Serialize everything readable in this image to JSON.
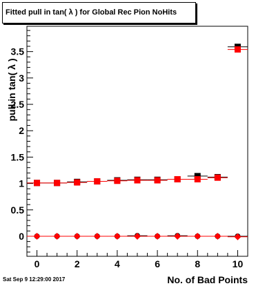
{
  "title": "Fitted pull in tan( λ ) for Global Rec Pion NoHits",
  "timestamp": "Sat Sep  9 12:29:00 2017",
  "chart_data": {
    "type": "scatter",
    "xlabel": "No. of Bad Points",
    "ylabel": "pull in tan( λ )",
    "xlim": [
      -0.5,
      10.5
    ],
    "ylim": [
      -0.38,
      3.98
    ],
    "xticks": [
      0,
      2,
      4,
      6,
      8,
      10
    ],
    "yticks": [
      0,
      0.5,
      1,
      1.5,
      2,
      2.5,
      3,
      3.5
    ],
    "ytick_labels": [
      "0",
      "0.5",
      "1",
      "1.5",
      "2",
      "2.5",
      "3",
      "3.5"
    ],
    "grid": false,
    "legend": "none",
    "series": [
      {
        "marker": "square",
        "color": "#000000",
        "points": [
          {
            "x": 0,
            "y": 1.01
          },
          {
            "x": 1,
            "y": 1.01
          },
          {
            "x": 2,
            "y": 1.03
          },
          {
            "x": 3,
            "y": 1.04
          },
          {
            "x": 4,
            "y": 1.06
          },
          {
            "x": 5,
            "y": 1.07
          },
          {
            "x": 6,
            "y": 1.07
          },
          {
            "x": 7,
            "y": 1.08
          },
          {
            "x": 8,
            "y": 1.14
          },
          {
            "x": 9,
            "y": 1.12
          },
          {
            "x": 10,
            "y": 3.59
          }
        ]
      },
      {
        "marker": "square",
        "color": "#ff0000",
        "points": [
          {
            "x": 0,
            "y": 1.01
          },
          {
            "x": 1,
            "y": 1.01
          },
          {
            "x": 2,
            "y": 1.02
          },
          {
            "x": 3,
            "y": 1.04
          },
          {
            "x": 4,
            "y": 1.05
          },
          {
            "x": 5,
            "y": 1.06
          },
          {
            "x": 6,
            "y": 1.06
          },
          {
            "x": 7,
            "y": 1.08
          },
          {
            "x": 8,
            "y": 1.08
          },
          {
            "x": 9,
            "y": 1.11
          },
          {
            "x": 10,
            "y": 3.54
          }
        ]
      },
      {
        "marker": "circle",
        "color": "#000000",
        "points": [
          {
            "x": 0,
            "y": 0.0
          },
          {
            "x": 1,
            "y": 0.0
          },
          {
            "x": 2,
            "y": 0.0
          },
          {
            "x": 3,
            "y": 0.0
          },
          {
            "x": 4,
            "y": 0.0
          },
          {
            "x": 5,
            "y": 0.01
          },
          {
            "x": 6,
            "y": 0.0
          },
          {
            "x": 7,
            "y": 0.01
          },
          {
            "x": 8,
            "y": 0.0
          },
          {
            "x": 9,
            "y": 0.0
          },
          {
            "x": 10,
            "y": 0.0
          }
        ]
      },
      {
        "marker": "diamond",
        "color": "#ff0000",
        "points": [
          {
            "x": 0,
            "y": 0.0
          },
          {
            "x": 1,
            "y": 0.0
          },
          {
            "x": 2,
            "y": 0.0
          },
          {
            "x": 3,
            "y": 0.0
          },
          {
            "x": 4,
            "y": 0.0
          },
          {
            "x": 5,
            "y": 0.0
          },
          {
            "x": 6,
            "y": 0.0
          },
          {
            "x": 7,
            "y": 0.0
          },
          {
            "x": 8,
            "y": 0.0
          },
          {
            "x": 9,
            "y": 0.0
          },
          {
            "x": 10,
            "y": -0.01
          }
        ]
      }
    ]
  }
}
